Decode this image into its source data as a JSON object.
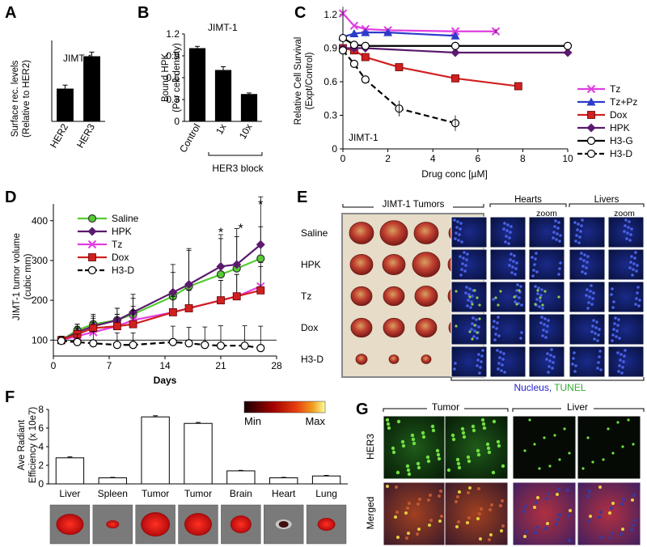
{
  "colors": {
    "tz": "#e03ee0",
    "tzpz": "#2b3cc8",
    "dox": "#d02020",
    "hpk": "#5a1a6e",
    "h3g": "#000000",
    "h3d": "#000000",
    "saline": "#55cc33",
    "nucleus_label": "#2222cc",
    "tunel_label": "#33aa33"
  },
  "panels": {
    "A": {
      "letter": "A",
      "chart_data": {
        "type": "bar",
        "title": "JIMT-1",
        "ylabel_line1": "Surface rec. levels",
        "ylabel_line2": "(Relative to HER2)",
        "categories": [
          "HER2",
          "HER3"
        ],
        "values": [
          1.0,
          2.0
        ],
        "errors": [
          0.12,
          0.14
        ],
        "ylim": [
          0,
          2.5
        ]
      }
    },
    "B": {
      "letter": "B",
      "chart_data": {
        "type": "bar",
        "title": "JIMT-1",
        "ylabel_line1": "Bound HPK",
        "ylabel_line2": "(Per cell density)",
        "categories": [
          "Control",
          "1x",
          "10x"
        ],
        "values": [
          1.0,
          0.7,
          0.37
        ],
        "errors": [
          0.03,
          0.05,
          0.02
        ],
        "ylim": [
          0,
          1.2
        ],
        "yticks": [
          "0",
          "0.3",
          "0.6",
          "0.9",
          "1.2"
        ],
        "group_label": "HER3 block"
      }
    },
    "C": {
      "letter": "C",
      "chart_data": {
        "type": "line",
        "annotation": "JIMT-1",
        "xlabel": "Drug conc [µM]",
        "ylabel_line1": "Relative Cell Survival",
        "ylabel_line2": "(Expt/Control)",
        "xlim": [
          0,
          10
        ],
        "ylim": [
          0,
          1.2
        ],
        "xticks": [
          "0",
          "2",
          "4",
          "6",
          "8",
          "10"
        ],
        "yticks": [
          "0",
          "0.3",
          "0.6",
          "0.9",
          "1.2"
        ],
        "series": [
          {
            "name": "Tz",
            "key": "tz",
            "marker": "x",
            "dash": false,
            "x": [
              0,
              0.5,
              1,
              2,
              5,
              6.8
            ],
            "y": [
              1.21,
              1.1,
              1.07,
              1.06,
              1.05,
              1.05
            ]
          },
          {
            "name": "Tz+Pz",
            "key": "tzpz",
            "marker": "triangle",
            "dash": false,
            "x": [
              0,
              0.5,
              1,
              2,
              5
            ],
            "y": [
              1.0,
              1.03,
              1.04,
              1.04,
              1.01
            ]
          },
          {
            "name": "Dox",
            "key": "dox",
            "marker": "square",
            "dash": false,
            "x": [
              0,
              0.5,
              1,
              2.5,
              5,
              7.8
            ],
            "y": [
              0.9,
              0.88,
              0.82,
              0.73,
              0.63,
              0.56
            ]
          },
          {
            "name": "HPK",
            "key": "hpk",
            "marker": "diamond",
            "dash": false,
            "x": [
              0,
              0.5,
              1,
              5,
              10
            ],
            "y": [
              0.9,
              0.9,
              0.9,
              0.86,
              0.86
            ]
          },
          {
            "name": "H3-G",
            "key": "h3g",
            "marker": "circle",
            "dash": false,
            "x": [
              0,
              0.5,
              1,
              5,
              10
            ],
            "y": [
              0.99,
              0.93,
              0.92,
              0.92,
              0.92
            ]
          },
          {
            "name": "H3-D",
            "key": "h3d",
            "marker": "circle",
            "dash": true,
            "x": [
              0,
              0.5,
              1,
              2.5,
              5
            ],
            "y": [
              0.88,
              0.76,
              0.62,
              0.36,
              0.23
            ]
          }
        ]
      }
    },
    "D": {
      "letter": "D",
      "chart_data": {
        "type": "line",
        "xlabel": "Days",
        "ylabel_line1": "JIMT-1 tumor volume",
        "ylabel_line2": "(cubic mm)",
        "xlim": [
          0,
          28
        ],
        "ylim": [
          60,
          430
        ],
        "xticks": [
          "0",
          "7",
          "14",
          "21",
          "28"
        ],
        "yticks": [
          "100",
          "200",
          "300",
          "400"
        ],
        "baseline": 100,
        "significance": [
          {
            "x": 21,
            "y": 360,
            "label": "*"
          },
          {
            "x": 23.5,
            "y": 370,
            "label": "*"
          },
          {
            "x": 26,
            "y": 430,
            "label": "*"
          }
        ],
        "series": [
          {
            "name": "Saline",
            "key": "saline",
            "marker": "circle",
            "dash": false,
            "x": [
              1,
              3,
              5,
              8,
              10,
              15,
              17,
              21,
              23,
              26
            ],
            "y": [
              100,
              125,
              140,
              150,
              165,
              210,
              235,
              265,
              280,
              305
            ],
            "err": [
              10,
              15,
              25,
              30,
              40,
              60,
              90,
              90,
              80,
              80
            ]
          },
          {
            "name": "HPK",
            "key": "hpk",
            "marker": "diamond",
            "dash": false,
            "x": [
              1,
              3,
              5,
              8,
              10,
              15,
              17,
              21,
              23,
              26
            ],
            "y": [
              100,
              120,
              135,
              150,
              170,
              220,
              240,
              285,
              290,
              340
            ],
            "err": [
              10,
              20,
              25,
              30,
              45,
              70,
              90,
              80,
              90,
              120
            ]
          },
          {
            "name": "Tz",
            "key": "tz",
            "marker": "x",
            "dash": false,
            "x": [
              1,
              3,
              5,
              8,
              10,
              15,
              17,
              21,
              23,
              26
            ],
            "y": [
              100,
              110,
              120,
              135,
              150,
              170,
              180,
              200,
              210,
              235
            ],
            "err": [
              10,
              20,
              25,
              30,
              35,
              40,
              45,
              50,
              55,
              60
            ]
          },
          {
            "name": "Dox",
            "key": "dox",
            "marker": "square",
            "dash": false,
            "x": [
              1,
              3,
              5,
              8,
              10,
              15,
              17,
              21,
              23,
              26
            ],
            "y": [
              100,
              115,
              130,
              135,
              140,
              170,
              180,
              200,
              210,
              225
            ],
            "err": [
              10,
              20,
              25,
              30,
              35,
              40,
              45,
              50,
              55,
              60
            ]
          },
          {
            "name": "H3-D",
            "key": "h3d",
            "marker": "circle",
            "dash": true,
            "x": [
              1,
              3,
              5,
              8,
              10,
              15,
              17,
              19,
              21,
              24,
              26
            ],
            "y": [
              98,
              95,
              92,
              88,
              88,
              95,
              92,
              88,
              86,
              86,
              80
            ],
            "err": [
              10,
              20,
              30,
              30,
              30,
              40,
              40,
              45,
              50,
              50,
              55
            ]
          }
        ]
      }
    },
    "E": {
      "letter": "E",
      "tumors_label": "JIMT-1 Tumors",
      "hearts_label": "Hearts",
      "livers_label": "Livers",
      "zoom_label": "zoom",
      "zoom_label_2": "zoom",
      "rows": [
        "Saline",
        "HPK",
        "Tz",
        "Dox",
        "H3-D"
      ],
      "stain_nucleus": "Nucleus",
      "stain_sep": ",",
      "stain_tunel": "TUNEL"
    },
    "F": {
      "letter": "F",
      "chart_data": {
        "type": "bar",
        "ylabel_line1": "Ave Radiant",
        "ylabel_line2": "Efficiency (x 10e7)",
        "categories": [
          "Liver",
          "Spleen",
          "Tumor",
          "Tumor",
          "Brain",
          "Heart",
          "Lung"
        ],
        "values": [
          2.8,
          0.65,
          7.2,
          6.5,
          1.4,
          0.65,
          0.85
        ],
        "errors": [
          0.1,
          0.05,
          0.12,
          0.1,
          0.05,
          0.05,
          0.06
        ],
        "ylim": [
          0,
          8
        ],
        "yticks": [
          "0",
          "2",
          "4",
          "6",
          "8"
        ]
      },
      "scale_min": "Min",
      "scale_max": "Max"
    },
    "G": {
      "letter": "G",
      "tumor_label": "Tumor",
      "liver_label": "Liver",
      "row1": "HER3",
      "row2": "Merged"
    }
  }
}
